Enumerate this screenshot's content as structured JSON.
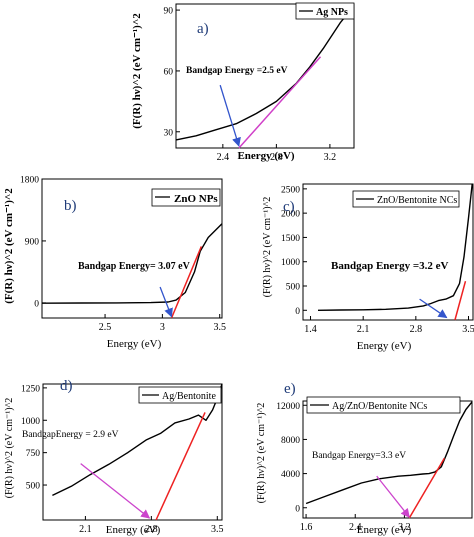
{
  "chart_data": [
    {
      "panel": "a)",
      "type": "line",
      "xlabel": "Energy (eV)",
      "ylabel": "(F(R) hν)^2 (eV cm⁻¹)^2",
      "xlim": [
        2.05,
        3.38
      ],
      "ylim": [
        22,
        93
      ],
      "xticks": [
        2.4,
        2.8,
        3.2
      ],
      "yticks": [
        30,
        60,
        90
      ],
      "legend": "Ag NPs",
      "legend_position": "top-right",
      "annotation": "Bandgap Energy =2.5 eV",
      "series": [
        {
          "name": "Ag NPs",
          "x": [
            2.05,
            2.2,
            2.35,
            2.5,
            2.65,
            2.8,
            2.95,
            3.05,
            3.15,
            3.22,
            3.28,
            3.33,
            3.36
          ],
          "y": [
            26,
            28,
            31,
            34,
            39,
            45,
            54,
            62,
            71,
            78,
            84,
            88,
            91
          ]
        }
      ],
      "tangent": {
        "x": [
          2.52,
          3.13
        ],
        "y": [
          22,
          67
        ]
      },
      "arrow": {
        "from": [
          2.38,
          53
        ],
        "to": [
          2.52,
          23
        ]
      }
    },
    {
      "panel": "b)",
      "type": "line",
      "xlabel": "Energy (eV)",
      "ylabel": "(F(R) hν)^2 (eV cm⁻¹)^2",
      "xlim": [
        1.95,
        3.52
      ],
      "ylim": [
        -220,
        1800
      ],
      "xticks": [
        2.5,
        3.0,
        3.5
      ],
      "yticks": [
        0,
        900,
        1800
      ],
      "legend": "ZnO NPs",
      "legend_position": "top-right",
      "annotation": "Bandgap Energy= 3.07 eV",
      "series": [
        {
          "name": "ZnO NPs",
          "x": [
            1.95,
            2.3,
            2.6,
            2.9,
            3.05,
            3.12,
            3.2,
            3.28,
            3.33,
            3.4,
            3.46,
            3.52
          ],
          "y": [
            -5,
            -2,
            0,
            4,
            12,
            40,
            150,
            450,
            750,
            950,
            1050,
            1150
          ]
        }
      ],
      "tangent": {
        "x": [
          3.08,
          3.34
        ],
        "y": [
          -220,
          820
        ]
      },
      "arrow": {
        "from": [
          2.98,
          230
        ],
        "to": [
          3.08,
          -200
        ]
      }
    },
    {
      "panel": "c)",
      "type": "line",
      "xlabel": "Energy (eV)",
      "ylabel": "(F(R) hν)^2 (eV cm⁻¹)^2",
      "xlim": [
        1.3,
        3.56
      ],
      "ylim": [
        -200,
        2600
      ],
      "xticks": [
        1.4,
        2.1,
        2.8,
        3.5
      ],
      "yticks": [
        0,
        500,
        1000,
        1500,
        2000,
        2500
      ],
      "legend": "ZnO/Bentonite NCs",
      "legend_position": "top-right",
      "annotation": "Bandgap Energy =3.2 eV",
      "series": [
        {
          "name": "ZnO/Bentonite NCs",
          "x": [
            1.5,
            1.8,
            2.1,
            2.4,
            2.7,
            2.9,
            3.0,
            3.1,
            3.2,
            3.3,
            3.38,
            3.44,
            3.5,
            3.55
          ],
          "y": [
            0,
            5,
            10,
            20,
            45,
            90,
            140,
            200,
            230,
            300,
            550,
            1100,
            1900,
            2600
          ]
        }
      ],
      "tangent": {
        "x": [
          3.32,
          3.46
        ],
        "y": [
          -200,
          600
        ]
      },
      "arrow": {
        "from": [
          2.85,
          230
        ],
        "to": [
          3.21,
          -150
        ]
      }
    },
    {
      "panel": "d)",
      "type": "line",
      "xlabel": "Energy (eV)",
      "ylabel": "(F(R) hν)^2 (eV cm⁻¹)^2",
      "xlim": [
        1.65,
        3.55
      ],
      "ylim": [
        230,
        1280
      ],
      "xticks": [
        2.1,
        2.8,
        3.5
      ],
      "yticks": [
        500,
        750,
        1000,
        1250
      ],
      "legend": "Ag/Bentonite",
      "legend_position": "top-right",
      "annotation": "BandgapEnergy = 2.9 eV",
      "series": [
        {
          "name": "Ag/Bentonite",
          "x": [
            1.75,
            1.95,
            2.15,
            2.35,
            2.55,
            2.75,
            2.9,
            3.05,
            3.2,
            3.3,
            3.38,
            3.45,
            3.5,
            3.55
          ],
          "y": [
            420,
            490,
            580,
            660,
            750,
            850,
            900,
            980,
            1010,
            1040,
            1000,
            1080,
            1170,
            1280
          ]
        }
      ],
      "tangent": {
        "x": [
          2.85,
          3.37
        ],
        "y": [
          230,
          1060
        ]
      },
      "arrow": {
        "from": [
          2.05,
          665
        ],
        "to": [
          2.78,
          245
        ]
      }
    },
    {
      "panel": "e)",
      "type": "line",
      "xlabel": "Energy (eV)",
      "ylabel": "(F(R) hν)^2 (eV cm⁻¹)^2",
      "xlim": [
        1.55,
        4.3
      ],
      "ylim": [
        -1200,
        12500
      ],
      "xticks": [
        1.6,
        2.4,
        3.2
      ],
      "yticks": [
        0,
        4000,
        8000,
        12000
      ],
      "legend": "Ag/ZnO/Bentonite NCs",
      "legend_position": "top-right",
      "annotation": "Bandgap Energy=3.3 eV",
      "series": [
        {
          "name": "Ag/ZnO/Bentonite NCs",
          "x": [
            1.6,
            1.9,
            2.2,
            2.5,
            2.8,
            3.1,
            3.3,
            3.5,
            3.6,
            3.7,
            3.8,
            3.9,
            4.0,
            4.1,
            4.2,
            4.3
          ],
          "y": [
            500,
            1300,
            2100,
            2900,
            3400,
            3700,
            3800,
            3950,
            4000,
            4200,
            4800,
            6500,
            8400,
            10200,
            11500,
            12400
          ]
        }
      ],
      "tangent": {
        "x": [
          3.28,
          3.85
        ],
        "y": [
          -1200,
          5800
        ]
      },
      "arrow": {
        "from": [
          2.75,
          3700
        ],
        "to": [
          3.28,
          -1100
        ]
      }
    }
  ],
  "colors": {
    "data": "#000000",
    "tangent_a": "#d040c8",
    "tangent": "#ee2222",
    "arrow_blue": "#3355cc",
    "arrow_magenta": "#cc44cc",
    "panel_label": "#1f3b78"
  }
}
